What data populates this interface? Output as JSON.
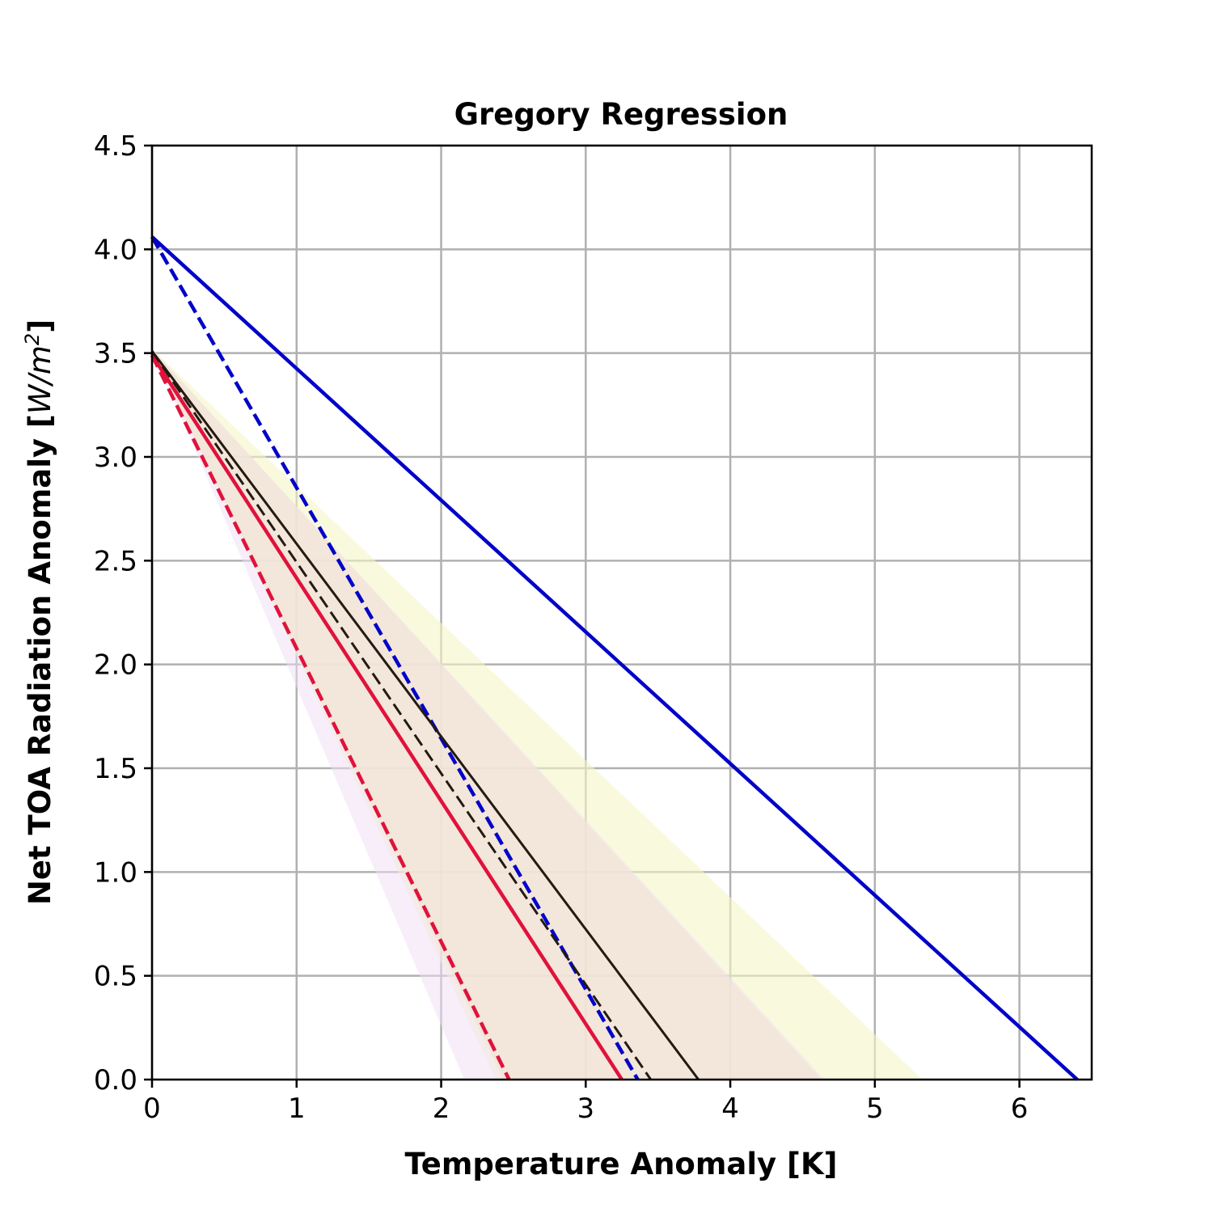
{
  "chart_data": {
    "type": "line",
    "title": "Gregory Regression",
    "xlabel": "Temperature Anomaly [K]",
    "ylabel_main": "Net TOA Radiation Anomaly [",
    "ylabel_math": "W/m",
    "ylabel_sup": "2",
    "ylabel_close": "]",
    "xlim": [
      0,
      6.5
    ],
    "ylim": [
      0,
      4.5
    ],
    "grid": true,
    "xticks": [
      0,
      1,
      2,
      3,
      4,
      5,
      6
    ],
    "xtick_labels": [
      "0",
      "1",
      "2",
      "3",
      "4",
      "5",
      "6"
    ],
    "yticks": [
      0,
      0.5,
      1,
      1.5,
      2,
      2.5,
      3,
      3.5,
      4,
      4.5
    ],
    "ytick_labels": [
      "0.0",
      "0.5",
      "1.0",
      "1.5",
      "2.0",
      "2.5",
      "3.0",
      "3.5",
      "4.0",
      "4.5"
    ],
    "bands": [
      {
        "color": "#f5f5c8",
        "opacity": 0.6,
        "points": [
          [
            0,
            3.52
          ],
          [
            5.33,
            0
          ],
          [
            2.38,
            0
          ]
        ]
      },
      {
        "color": "#efdef5",
        "opacity": 0.5,
        "points": [
          [
            0,
            3.52
          ],
          [
            4.65,
            0
          ],
          [
            2.16,
            0
          ]
        ]
      },
      {
        "color": "#f2e4d4",
        "opacity": 0.7,
        "points": [
          [
            0,
            3.52
          ],
          [
            4.63,
            0
          ],
          [
            2.43,
            0
          ]
        ]
      }
    ],
    "series": [
      {
        "color": "#0000c8",
        "dash": "solid",
        "width": 4.5,
        "x": [
          0,
          6.4
        ],
        "y": [
          4.06,
          0
        ]
      },
      {
        "color": "#0000c8",
        "dash": "dashed",
        "width": 4.5,
        "x": [
          0,
          3.36
        ],
        "y": [
          4.06,
          0
        ]
      },
      {
        "color": "#e0123c",
        "dash": "solid",
        "width": 4.5,
        "x": [
          0,
          3.25
        ],
        "y": [
          3.49,
          0
        ]
      },
      {
        "color": "#e0123c",
        "dash": "dashed",
        "width": 4.5,
        "x": [
          0,
          2.47
        ],
        "y": [
          3.49,
          0
        ]
      },
      {
        "color": "#231a12",
        "dash": "solid",
        "width": 3,
        "x": [
          0,
          3.78
        ],
        "y": [
          3.51,
          0
        ]
      },
      {
        "color": "#231a12",
        "dash": "dashed",
        "width": 3,
        "x": [
          0,
          3.45
        ],
        "y": [
          3.51,
          0
        ]
      }
    ]
  }
}
